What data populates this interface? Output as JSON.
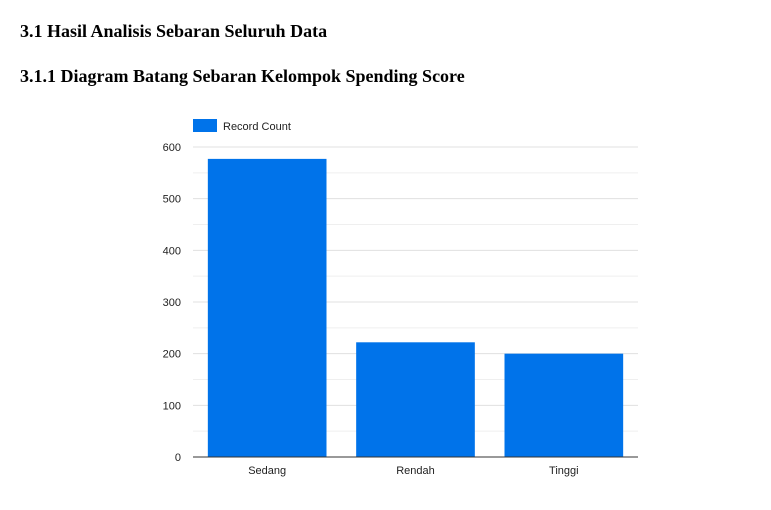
{
  "document": {
    "section_heading": "3.1 Hasil Analisis Sebaran Seluruh Data",
    "subsection_heading": "3.1.1  Diagram Batang Sebaran Kelompok Spending Score"
  },
  "chart_data": {
    "type": "bar",
    "categories": [
      "Sedang",
      "Rendah",
      "Tinggi"
    ],
    "series": [
      {
        "name": "Record Count",
        "values": [
          577,
          222,
          200
        ]
      }
    ],
    "yticks": [
      "0",
      "100",
      "200",
      "300",
      "400",
      "500",
      "600"
    ],
    "ylim": [
      0,
      600
    ],
    "grid": true,
    "legend_position": "top-left",
    "bar_color": "#0073EA",
    "grid_color": "#E0E0E0",
    "axis_color": "#333333"
  }
}
